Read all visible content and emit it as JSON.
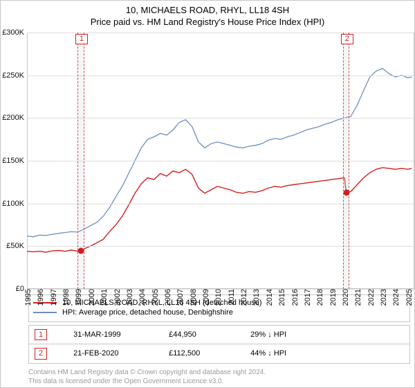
{
  "title": "10, MICHAELS ROAD, RHYL, LL18 4SH",
  "subtitle": "Price paid vs. HM Land Registry's House Price Index (HPI)",
  "chart": {
    "type": "line",
    "background_color": "#ffffff",
    "grid_color": "#dcdcdc",
    "axis_color": "#c7c7c7",
    "font_size_labels": 11,
    "x_min": 1995,
    "x_max": 2025.5,
    "y_min": 0,
    "y_max": 300000,
    "y_ticks": [
      0,
      50000,
      100000,
      150000,
      200000,
      250000,
      300000
    ],
    "y_tick_labels": [
      "£0",
      "£50K",
      "£100K",
      "£150K",
      "£200K",
      "£250K",
      "£300K"
    ],
    "x_ticks": [
      1995,
      1996,
      1997,
      1998,
      1999,
      2000,
      2001,
      2002,
      2003,
      2004,
      2005,
      2006,
      2007,
      2008,
      2009,
      2010,
      2011,
      2012,
      2013,
      2014,
      2015,
      2016,
      2017,
      2018,
      2019,
      2020,
      2021,
      2022,
      2023,
      2024,
      2025
    ],
    "series": [
      {
        "id": "price_paid",
        "label": "10, MICHAELS ROAD, RHYL, LL18 4SH (detached house)",
        "color": "#d21f1f",
        "line_width": 1.4,
        "points": [
          [
            1995.0,
            44000
          ],
          [
            1995.5,
            43500
          ],
          [
            1996.0,
            44000
          ],
          [
            1996.5,
            43000
          ],
          [
            1997.0,
            44500
          ],
          [
            1997.5,
            45000
          ],
          [
            1998.0,
            44000
          ],
          [
            1998.5,
            45500
          ],
          [
            1999.0,
            44000
          ],
          [
            1999.25,
            44950
          ],
          [
            1999.5,
            47000
          ],
          [
            2000.0,
            50000
          ],
          [
            2000.5,
            54000
          ],
          [
            2001.0,
            58000
          ],
          [
            2001.5,
            67000
          ],
          [
            2002.0,
            75000
          ],
          [
            2002.5,
            85000
          ],
          [
            2003.0,
            98000
          ],
          [
            2003.5,
            112000
          ],
          [
            2004.0,
            123000
          ],
          [
            2004.5,
            130000
          ],
          [
            2005.0,
            128000
          ],
          [
            2005.5,
            135000
          ],
          [
            2006.0,
            132000
          ],
          [
            2006.5,
            138000
          ],
          [
            2007.0,
            136000
          ],
          [
            2007.5,
            140000
          ],
          [
            2008.0,
            134000
          ],
          [
            2008.5,
            118000
          ],
          [
            2009.0,
            112000
          ],
          [
            2009.5,
            116000
          ],
          [
            2010.0,
            120000
          ],
          [
            2010.5,
            118000
          ],
          [
            2011.0,
            116000
          ],
          [
            2011.5,
            113000
          ],
          [
            2012.0,
            112000
          ],
          [
            2012.5,
            114000
          ],
          [
            2013.0,
            113000
          ],
          [
            2013.5,
            115000
          ],
          [
            2014.0,
            118000
          ],
          [
            2014.5,
            120000
          ],
          [
            2015.0,
            119000
          ],
          [
            2015.5,
            121000
          ],
          [
            2016.0,
            122000
          ],
          [
            2016.5,
            123000
          ],
          [
            2017.0,
            124000
          ],
          [
            2017.5,
            125000
          ],
          [
            2018.0,
            126000
          ],
          [
            2018.5,
            127000
          ],
          [
            2019.0,
            128000
          ],
          [
            2019.5,
            129000
          ],
          [
            2020.0,
            130000
          ],
          [
            2020.14,
            112500
          ],
          [
            2020.3,
            113000
          ],
          [
            2020.5,
            114000
          ],
          [
            2021.0,
            122000
          ],
          [
            2021.5,
            130000
          ],
          [
            2022.0,
            136000
          ],
          [
            2022.5,
            140000
          ],
          [
            2023.0,
            142000
          ],
          [
            2023.5,
            141000
          ],
          [
            2024.0,
            140000
          ],
          [
            2024.5,
            141000
          ],
          [
            2025.0,
            140000
          ],
          [
            2025.3,
            141000
          ]
        ]
      },
      {
        "id": "hpi",
        "label": "HPI: Average price, detached house, Denbighshire",
        "color": "#6a8fbf",
        "line_width": 1.3,
        "points": [
          [
            1995.0,
            62000
          ],
          [
            1995.5,
            61000
          ],
          [
            1996.0,
            63000
          ],
          [
            1996.5,
            62500
          ],
          [
            1997.0,
            64000
          ],
          [
            1997.5,
            65000
          ],
          [
            1998.0,
            66000
          ],
          [
            1998.5,
            67000
          ],
          [
            1999.0,
            66500
          ],
          [
            1999.5,
            70000
          ],
          [
            2000.0,
            74000
          ],
          [
            2000.5,
            78000
          ],
          [
            2001.0,
            85000
          ],
          [
            2001.5,
            95000
          ],
          [
            2002.0,
            108000
          ],
          [
            2002.5,
            120000
          ],
          [
            2003.0,
            135000
          ],
          [
            2003.5,
            150000
          ],
          [
            2004.0,
            165000
          ],
          [
            2004.5,
            175000
          ],
          [
            2005.0,
            178000
          ],
          [
            2005.5,
            182000
          ],
          [
            2006.0,
            180000
          ],
          [
            2006.5,
            186000
          ],
          [
            2007.0,
            195000
          ],
          [
            2007.5,
            198000
          ],
          [
            2008.0,
            190000
          ],
          [
            2008.5,
            172000
          ],
          [
            2009.0,
            165000
          ],
          [
            2009.5,
            170000
          ],
          [
            2010.0,
            172000
          ],
          [
            2010.5,
            170000
          ],
          [
            2011.0,
            168000
          ],
          [
            2011.5,
            166000
          ],
          [
            2012.0,
            165000
          ],
          [
            2012.5,
            167000
          ],
          [
            2013.0,
            168000
          ],
          [
            2013.5,
            170000
          ],
          [
            2014.0,
            174000
          ],
          [
            2014.5,
            176000
          ],
          [
            2015.0,
            175000
          ],
          [
            2015.5,
            178000
          ],
          [
            2016.0,
            180000
          ],
          [
            2016.5,
            183000
          ],
          [
            2017.0,
            186000
          ],
          [
            2017.5,
            188000
          ],
          [
            2018.0,
            190000
          ],
          [
            2018.5,
            193000
          ],
          [
            2019.0,
            195000
          ],
          [
            2019.5,
            198000
          ],
          [
            2020.0,
            200000
          ],
          [
            2020.5,
            202000
          ],
          [
            2021.0,
            215000
          ],
          [
            2021.5,
            232000
          ],
          [
            2022.0,
            248000
          ],
          [
            2022.5,
            255000
          ],
          [
            2023.0,
            258000
          ],
          [
            2023.5,
            252000
          ],
          [
            2024.0,
            248000
          ],
          [
            2024.5,
            250000
          ],
          [
            2025.0,
            247000
          ],
          [
            2025.3,
            248000
          ]
        ]
      }
    ],
    "markers": [
      {
        "id": "1",
        "label": "1",
        "x": 1999.25,
        "y": 44950,
        "band_halfwidth_years": 0.25,
        "dot_color": "#d21f1f"
      },
      {
        "id": "2",
        "label": "2",
        "x": 2020.14,
        "y": 112500,
        "band_halfwidth_years": 0.25,
        "dot_color": "#d21f1f"
      }
    ]
  },
  "legend": {
    "items": [
      {
        "series": "price_paid",
        "color": "#d21f1f",
        "label": "10, MICHAELS ROAD, RHYL, LL18 4SH (detached house)"
      },
      {
        "series": "hpi",
        "color": "#6a8fbf",
        "label": "HPI: Average price, detached house, Denbighshire"
      }
    ]
  },
  "sales_table": {
    "arrow_glyph": "↓",
    "hpi_label": "HPI",
    "rows": [
      {
        "badge": "1",
        "date": "31-MAR-1999",
        "price": "£44,950",
        "delta_pct": "29%"
      },
      {
        "badge": "2",
        "date": "21-FEB-2020",
        "price": "£112,500",
        "delta_pct": "44%"
      }
    ]
  },
  "attribution": {
    "line1": "Contains HM Land Registry data © Crown copyright and database right 2024.",
    "line2": "This data is licensed under the Open Government Licence v3.0."
  }
}
